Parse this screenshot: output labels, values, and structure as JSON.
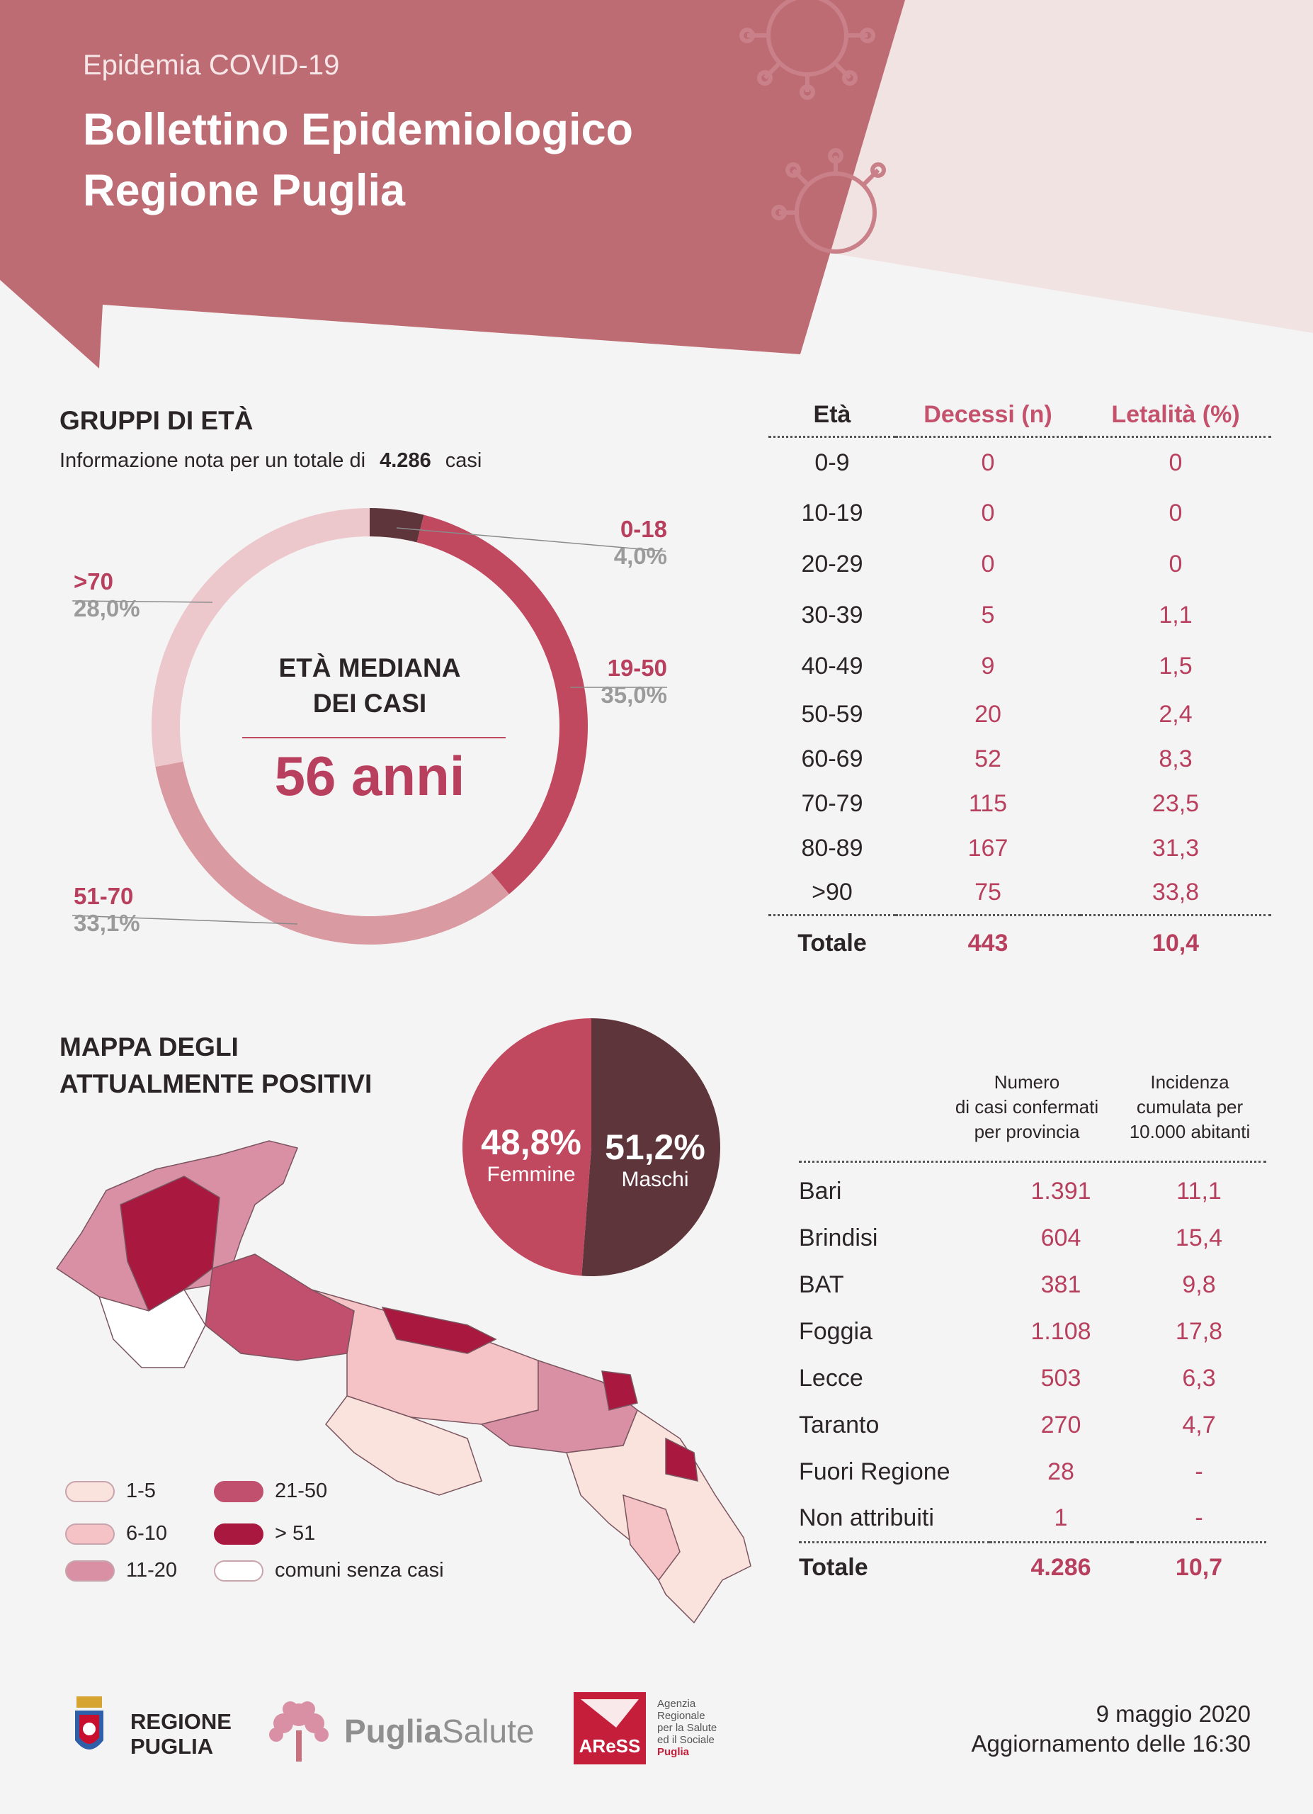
{
  "header": {
    "subtitle": "Epidemia COVID-19",
    "title_line1": "Bollettino Epidemiologico",
    "title_line2": "Regione Puglia"
  },
  "age_groups": {
    "title": "GRUPPI DI ETÀ",
    "info_prefix": "Informazione nota per un totale di",
    "info_total": "4.286",
    "info_suffix": "casi",
    "center_line1": "ETÀ MEDIANA",
    "center_line2": "DEI CASI",
    "center_value": "56 anni"
  },
  "death_table": {
    "headers": [
      "Età",
      "Decessi (n)",
      "Letalità (%)"
    ],
    "rows": [
      [
        "0-9",
        "0",
        "0"
      ],
      [
        "10-19",
        "0",
        "0"
      ],
      [
        "20-29",
        "0",
        "0"
      ],
      [
        "30-39",
        "5",
        "1,1"
      ],
      [
        "40-49",
        "9",
        "1,5"
      ],
      [
        "50-59",
        "20",
        "2,4"
      ],
      [
        "60-69",
        "52",
        "8,3"
      ],
      [
        "70-79",
        "115",
        "23,5"
      ],
      [
        "80-89",
        "167",
        "31,3"
      ],
      [
        ">90",
        "75",
        "33,8"
      ]
    ],
    "total": [
      "Totale",
      "443",
      "10,4"
    ]
  },
  "map": {
    "title_line1": "MAPPA DEGLI",
    "title_line2": "ATTUALMENTE POSITIVI",
    "legend": [
      {
        "label": "1-5",
        "color": "#fbe3dd"
      },
      {
        "label": "6-10",
        "color": "#f5c3c5"
      },
      {
        "label": "11-20",
        "color": "#d98fa4"
      },
      {
        "label": "21-50",
        "color": "#c0506d"
      },
      {
        "label": "> 51",
        "color": "#a8183f"
      },
      {
        "label": "comuni senza casi",
        "color": "#ffffff"
      }
    ]
  },
  "province_table": {
    "col1_header": [
      "Numero",
      "di casi confermati",
      "per provincia"
    ],
    "col2_header": [
      "Incidenza",
      "cumulata per",
      "10.000 abitanti"
    ],
    "rows": [
      [
        "Bari",
        "1.391",
        "11,1"
      ],
      [
        "Brindisi",
        "604",
        "15,4"
      ],
      [
        "BAT",
        "381",
        "9,8"
      ],
      [
        "Foggia",
        "1.108",
        "17,8"
      ],
      [
        "Lecce",
        "503",
        "6,3"
      ],
      [
        "Taranto",
        "270",
        "4,7"
      ],
      [
        "Fuori Regione",
        "28",
        "-"
      ],
      [
        "Non attribuiti",
        "1",
        "-"
      ]
    ],
    "total": [
      "Totale",
      "4.286",
      "10,7"
    ]
  },
  "footer": {
    "logo1_line1": "REGIONE",
    "logo1_line2": "PUGLIA",
    "logo2_part1": "Puglia",
    "logo2_part2": "Salute",
    "logo3_text": "AReSS",
    "logo3_desc": [
      "Agenzia",
      "Regionale",
      "per la Salute",
      "ed il Sociale",
      "Puglia"
    ],
    "date": "9 maggio 2020",
    "update": "Aggiornamento delle 16:30"
  },
  "chart_data": [
    {
      "type": "pie",
      "variant": "donut",
      "title": "GRUPPI DI ETÀ",
      "categories": [
        "0-18",
        "19-50",
        "51-70",
        ">70"
      ],
      "values": [
        4.0,
        35.0,
        33.1,
        28.0
      ],
      "labels": [
        "4,0%",
        "35,0%",
        "33,1%",
        "28,0%"
      ],
      "colors": [
        "#5e353b",
        "#c0485f",
        "#d99aa2",
        "#ecc8cc"
      ],
      "center_text": "ETÀ MEDIANA DEI CASI 56 anni"
    },
    {
      "type": "pie",
      "categories": [
        "Femmine",
        "Maschi"
      ],
      "values": [
        48.8,
        51.2
      ],
      "labels": [
        "48,8%",
        "51,2%"
      ],
      "colors": [
        "#c0485f",
        "#5e353b"
      ]
    }
  ]
}
